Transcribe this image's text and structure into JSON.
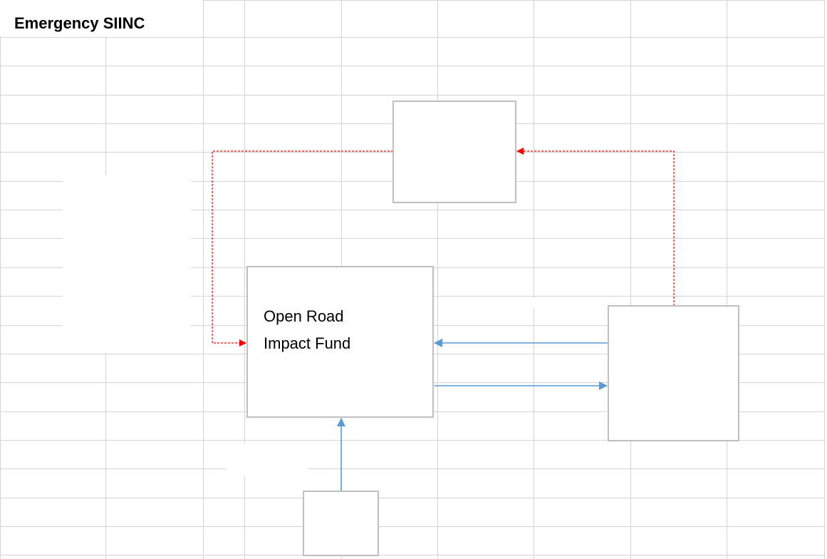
{
  "title": "Emergency SIINC",
  "nodes": [
    {
      "lines": [
        "Open Road",
        "Impact Fund"
      ]
    }
  ]
}
